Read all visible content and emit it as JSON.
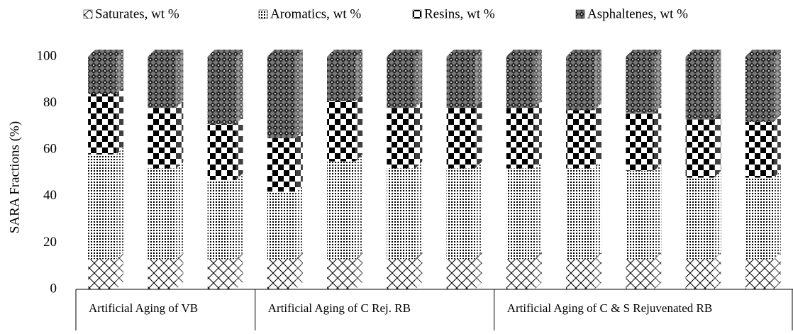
{
  "chart_data": {
    "type": "bar",
    "stacked": true,
    "y_label": "SARA Fractions (%)",
    "categories": [
      null,
      null,
      null,
      null,
      null,
      null,
      null,
      null,
      null,
      null,
      null,
      null
    ],
    "groups": [
      {
        "label": "Artificial Aging of VB",
        "size": 3
      },
      {
        "label": "Artificial Aging of C Rej. RB",
        "size": 4
      },
      {
        "label": "Artificial Aging of C & S Rejuvenated RB",
        "size": 5
      }
    ],
    "series": [
      {
        "name": "Saturates, wt %",
        "color": "#000000",
        "values": [
          13,
          13,
          13,
          13,
          13,
          13,
          13,
          13,
          13,
          13,
          13,
          13
        ]
      },
      {
        "name": "Aromatics, wt %",
        "color": "#000000",
        "values": [
          45,
          39,
          34,
          29,
          42,
          39,
          39,
          39,
          39,
          38,
          35,
          35
        ]
      },
      {
        "name": "Resins, wt %",
        "color": "#000000",
        "values": [
          26,
          26,
          24,
          23,
          26,
          26,
          26,
          26,
          25,
          25,
          25,
          24
        ]
      },
      {
        "name": "Asphaltenes, wt %",
        "color": "#000000",
        "values": [
          16,
          22,
          29,
          35,
          19,
          22,
          22,
          22,
          23,
          24,
          27,
          28
        ]
      }
    ],
    "ylim": [
      0,
      100
    ],
    "yticks": [
      0,
      20,
      40,
      60,
      80,
      100
    ],
    "grid": false,
    "legend": "top"
  }
}
